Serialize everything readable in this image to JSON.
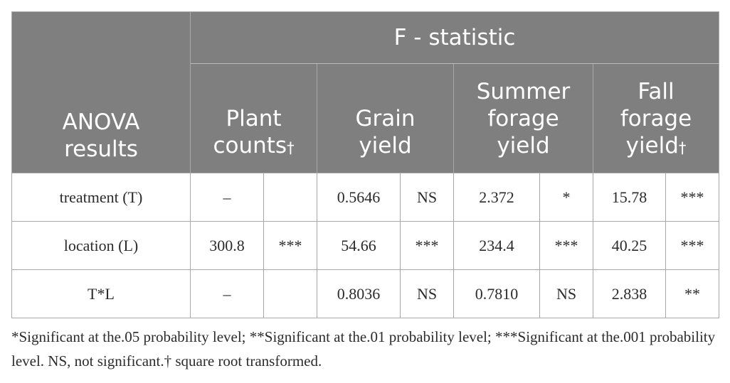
{
  "table": {
    "row_header": "ANOVA results",
    "group_header": "F - statistic",
    "columns": [
      {
        "line1": "Plant",
        "line2": "counts",
        "marker": "†"
      },
      {
        "line1": "Grain",
        "line2": "yield",
        "marker": ""
      },
      {
        "line1": "Summer forage",
        "line2": "yield",
        "marker": ""
      },
      {
        "line1": "Fall forage",
        "line2": "yield",
        "marker": "†"
      }
    ],
    "rows": [
      {
        "label": "treatment (T)",
        "cells": [
          "–",
          "",
          "0.5646",
          "NS",
          "2.372",
          "*",
          "15.78",
          "***"
        ]
      },
      {
        "label": "location (L)",
        "cells": [
          "300.8",
          "***",
          "54.66",
          "***",
          "234.4",
          "***",
          "40.25",
          "***"
        ]
      },
      {
        "label": "T*L",
        "cells": [
          "–",
          "",
          "0.8036",
          "NS",
          "0.7810",
          "NS",
          "2.838",
          "**"
        ]
      }
    ]
  },
  "footnote": "*Significant at the.05 probability level; **Significant at the.01 probability level; ***Significant at the.001 probability level. NS, not significant.† square root transformed."
}
